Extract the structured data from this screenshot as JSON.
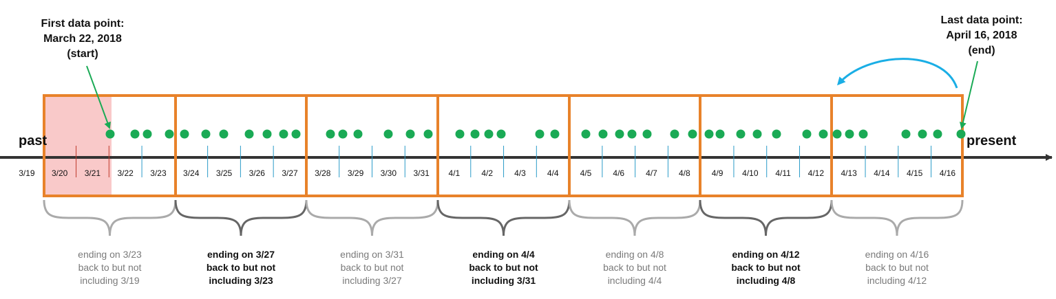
{
  "annotations": {
    "start_lines": [
      "First data point:",
      "March 22, 2018",
      "(start)"
    ],
    "end_lines": [
      "Last data point:",
      "April 16, 2018",
      "(end)"
    ],
    "past_label": "past",
    "present_label": "present"
  },
  "dates": [
    "3/19",
    "3/20",
    "3/21",
    "3/22",
    "3/23",
    "3/24",
    "3/25",
    "3/26",
    "3/27",
    "3/28",
    "3/29",
    "3/30",
    "3/31",
    "4/1",
    "4/2",
    "4/3",
    "4/4",
    "4/5",
    "4/6",
    "4/7",
    "4/8",
    "4/9",
    "4/10",
    "4/11",
    "4/12",
    "4/13",
    "4/14",
    "4/15",
    "4/16"
  ],
  "windows": [
    {
      "lines": [
        "ending on 3/23",
        "back to but not",
        "including 3/19"
      ],
      "style": "light"
    },
    {
      "lines": [
        "ending on 3/27",
        "back to but not",
        "including 3/23"
      ],
      "style": "dark"
    },
    {
      "lines": [
        "ending on 3/31",
        "back to but not",
        "including 3/27"
      ],
      "style": "light"
    },
    {
      "lines": [
        "ending on 4/4",
        "back to but not",
        "including 3/31"
      ],
      "style": "dark"
    },
    {
      "lines": [
        "ending on 4/8",
        "back to but not",
        "including 4/4"
      ],
      "style": "light"
    },
    {
      "lines": [
        "ending on 4/12",
        "back to but not",
        "including 4/8"
      ],
      "style": "dark"
    },
    {
      "lines": [
        "ending on 4/16",
        "back to but not",
        "including 4/12"
      ],
      "style": "light"
    }
  ],
  "excluded_dates": [
    "3/20",
    "3/21"
  ],
  "data_point_count": 44,
  "colors": {
    "window_border": "#E8822A",
    "excluded_fill": "#F9C9C9",
    "data_point": "#1AAA55",
    "arrow_green": "#1AAA55",
    "arrow_blue": "#1AAEE5",
    "axis": "#333333",
    "tick_blue": "#2A9BC8",
    "tick_red": "#C0392B",
    "brace_light": "#AAAAAA",
    "brace_dark": "#666666"
  }
}
